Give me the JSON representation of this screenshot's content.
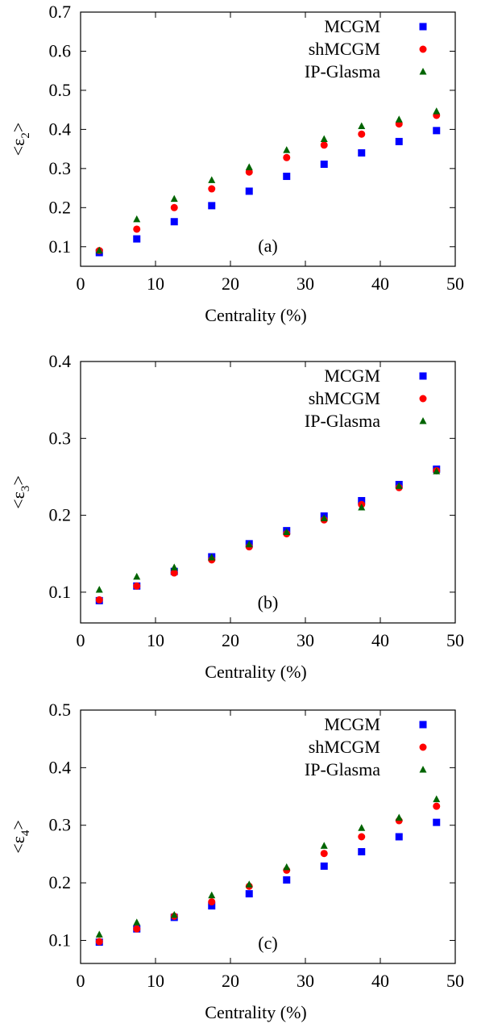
{
  "chart_data": [
    {
      "type": "scatter",
      "panel_label": "(a)",
      "xlabel": "Centrality (%)",
      "ylabel": "<ε2>",
      "ylabel_main": "<ε",
      "ylabel_sub": "2",
      "ylabel_end": ">",
      "xlim": [
        0,
        50
      ],
      "ylim": [
        0.05,
        0.7
      ],
      "xticks": [
        0,
        10,
        20,
        30,
        40,
        50
      ],
      "yticks": [
        0.1,
        0.2,
        0.3,
        0.4,
        0.5,
        0.6,
        0.7
      ],
      "legend_position": "top-right",
      "x": [
        2.5,
        7.5,
        12.5,
        17.5,
        22.5,
        27.5,
        32.5,
        37.5,
        42.5,
        47.5
      ],
      "series": [
        {
          "name": "MCGM",
          "marker": "square",
          "color": "#0000ff",
          "values": [
            0.085,
            0.12,
            0.164,
            0.205,
            0.242,
            0.28,
            0.311,
            0.34,
            0.369,
            0.397
          ]
        },
        {
          "name": "shMCGM",
          "marker": "circle",
          "color": "#ff0000",
          "values": [
            0.09,
            0.145,
            0.2,
            0.248,
            0.291,
            0.328,
            0.36,
            0.388,
            0.414,
            0.436
          ]
        },
        {
          "name": "IP-Glasma",
          "marker": "triangle",
          "color": "#006400",
          "values": [
            0.09,
            0.17,
            0.222,
            0.27,
            0.303,
            0.347,
            0.375,
            0.408,
            0.425,
            0.446
          ]
        }
      ]
    },
    {
      "type": "scatter",
      "panel_label": "(b)",
      "xlabel": "Centrality (%)",
      "ylabel": "<ε3>",
      "ylabel_main": "<ε",
      "ylabel_sub": "3",
      "ylabel_end": ">",
      "xlim": [
        0,
        50
      ],
      "ylim": [
        0.06,
        0.4
      ],
      "xticks": [
        0,
        10,
        20,
        30,
        40,
        50
      ],
      "yticks": [
        0.1,
        0.2,
        0.3,
        0.4
      ],
      "legend_position": "top-right",
      "x": [
        2.5,
        7.5,
        12.5,
        17.5,
        22.5,
        27.5,
        32.5,
        37.5,
        42.5,
        47.5
      ],
      "series": [
        {
          "name": "MCGM",
          "marker": "square",
          "color": "#0000ff",
          "values": [
            0.089,
            0.108,
            0.127,
            0.146,
            0.163,
            0.18,
            0.199,
            0.219,
            0.24,
            0.26
          ]
        },
        {
          "name": "shMCGM",
          "marker": "circle",
          "color": "#ff0000",
          "values": [
            0.09,
            0.108,
            0.125,
            0.142,
            0.159,
            0.176,
            0.194,
            0.214,
            0.236,
            0.258
          ]
        },
        {
          "name": "IP-Glasma",
          "marker": "triangle",
          "color": "#006400",
          "values": [
            0.103,
            0.12,
            0.132,
            0.145,
            0.162,
            0.178,
            0.196,
            0.21,
            0.238,
            0.257
          ]
        }
      ]
    },
    {
      "type": "scatter",
      "panel_label": "(c)",
      "xlabel": "Centrality (%)",
      "ylabel": "<ε4>",
      "ylabel_main": "<ε",
      "ylabel_sub": "4",
      "ylabel_end": ">",
      "xlim": [
        0,
        50
      ],
      "ylim": [
        0.06,
        0.5
      ],
      "xticks": [
        0,
        10,
        20,
        30,
        40,
        50
      ],
      "yticks": [
        0.1,
        0.2,
        0.3,
        0.4,
        0.5
      ],
      "legend_position": "top-right",
      "x": [
        2.5,
        7.5,
        12.5,
        17.5,
        22.5,
        27.5,
        32.5,
        37.5,
        42.5,
        47.5
      ],
      "series": [
        {
          "name": "MCGM",
          "marker": "square",
          "color": "#0000ff",
          "values": [
            0.097,
            0.12,
            0.14,
            0.16,
            0.181,
            0.205,
            0.229,
            0.254,
            0.28,
            0.305
          ]
        },
        {
          "name": "shMCGM",
          "marker": "circle",
          "color": "#ff0000",
          "values": [
            0.098,
            0.12,
            0.142,
            0.167,
            0.194,
            0.222,
            0.251,
            0.28,
            0.308,
            0.333
          ]
        },
        {
          "name": "IP-Glasma",
          "marker": "triangle",
          "color": "#006400",
          "values": [
            0.11,
            0.131,
            0.144,
            0.178,
            0.197,
            0.227,
            0.264,
            0.295,
            0.313,
            0.345
          ]
        }
      ]
    }
  ]
}
